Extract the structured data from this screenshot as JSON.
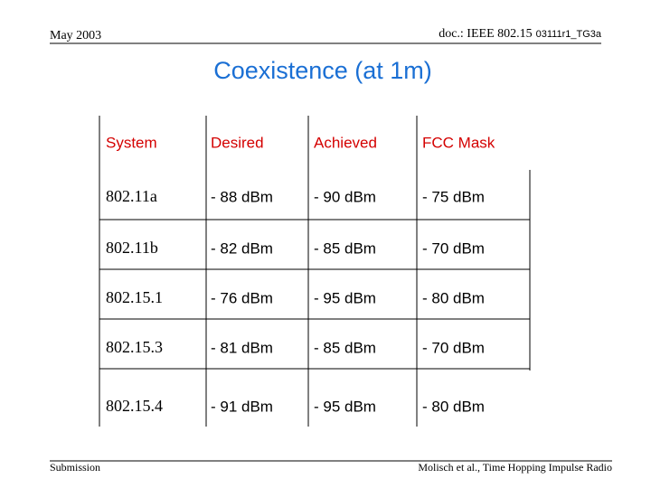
{
  "header": {
    "date": "May 2003",
    "doc": "doc.: IEEE 802.15",
    "doc_number": "03111r1_TG3a"
  },
  "title": "Coexistence (at 1m)",
  "table": {
    "columns": [
      "System",
      "Desired",
      "Achieved",
      "FCC Mask"
    ],
    "rows": [
      [
        "802.11a",
        "- 88 dBm",
        "- 90 dBm",
        "- 75 dBm"
      ],
      [
        "802.11b",
        "- 82 dBm",
        "- 85 dBm",
        "- 70 dBm"
      ],
      [
        "802.15.1",
        "- 76 dBm",
        "- 95 dBm",
        "- 80 dBm"
      ],
      [
        "802.15.3",
        "- 81 dBm",
        "- 85 dBm",
        "- 70 dBm"
      ],
      [
        "802.15.4",
        "- 91 dBm",
        "- 95 dBm",
        "- 80 dBm"
      ]
    ]
  },
  "footer": {
    "left": "Submission",
    "right": "Molisch et al., Time Hopping Impulse Radio"
  }
}
